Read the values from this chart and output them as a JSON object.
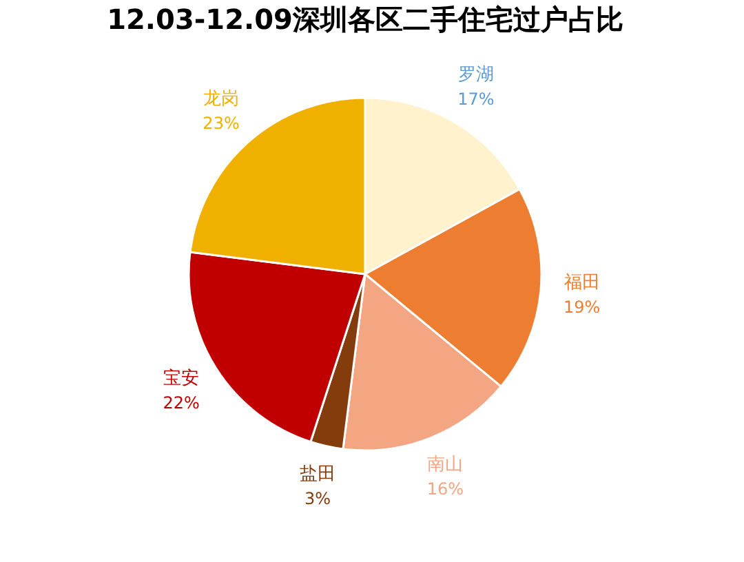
{
  "chart_data": {
    "type": "pie",
    "title": "12.03-12.09深圳各区二手住宅过户占比",
    "categories": [
      "罗湖",
      "福田",
      "南山",
      "盐田",
      "宝安",
      "龙岗"
    ],
    "values": [
      17,
      19,
      16,
      3,
      22,
      23
    ],
    "value_labels": [
      "17%",
      "19%",
      "16%",
      "3%",
      "22%",
      "23%"
    ],
    "colors": [
      "#fff2cc",
      "#ed7d31",
      "#f4a582",
      "#843c0c",
      "#c00000",
      "#f0b000"
    ],
    "legend": false
  }
}
